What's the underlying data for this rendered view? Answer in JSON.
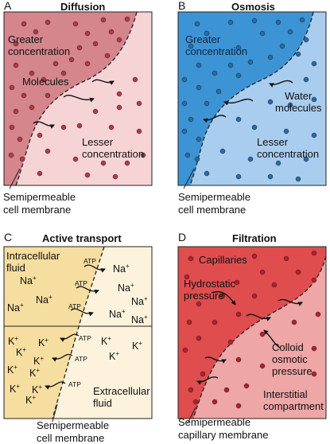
{
  "panels": {
    "diffusion": {
      "letter": "A",
      "title": "Diffusion",
      "greater": [
        "Greater",
        "concentration"
      ],
      "molecules": "Molecules",
      "lesser": [
        "Lesser",
        "concentration"
      ],
      "membrane": [
        "Semipermeable",
        "cell membrane"
      ],
      "colors": {
        "high": "#d4868c",
        "low": "#f6d4d5",
        "dot": "#b03a48"
      }
    },
    "osmosis": {
      "letter": "B",
      "title": "Osmosis",
      "greater": [
        "Greater",
        "concentration"
      ],
      "water": [
        "Water",
        "molecules"
      ],
      "lesser": [
        "Lesser",
        "concentration"
      ],
      "membrane": [
        "Semipermeable",
        "cell membrane"
      ],
      "colors": {
        "high": "#3d94d4",
        "low": "#a9cdee",
        "dot": "#1c6fae"
      }
    },
    "active": {
      "letter": "C",
      "title": "Active transport",
      "intracellular": [
        "Intracellular",
        "fluid"
      ],
      "extracellular": [
        "Extracellular",
        "fluid"
      ],
      "membrane": [
        "Semipermeable",
        "cell membrane"
      ],
      "atp": "ATP",
      "na": "Na",
      "k": "K",
      "charge": "+",
      "colors": {
        "inside": "#f6dda0",
        "outside": "#fdf3dc"
      }
    },
    "filtration": {
      "letter": "D",
      "title": "Filtration",
      "capillaries": "Capillaries",
      "hydrostatic": [
        "Hydrostatic",
        "pressure"
      ],
      "colloid": [
        "Colloid",
        "osmotic",
        "pressure"
      ],
      "interstitial": [
        "Interstitial",
        "compartment"
      ],
      "membrane": [
        "Semipermeable",
        "capillary membrane"
      ],
      "colors": {
        "high": "#df4d4f",
        "low": "#eea6a6",
        "dot": "#b3202c"
      }
    }
  }
}
